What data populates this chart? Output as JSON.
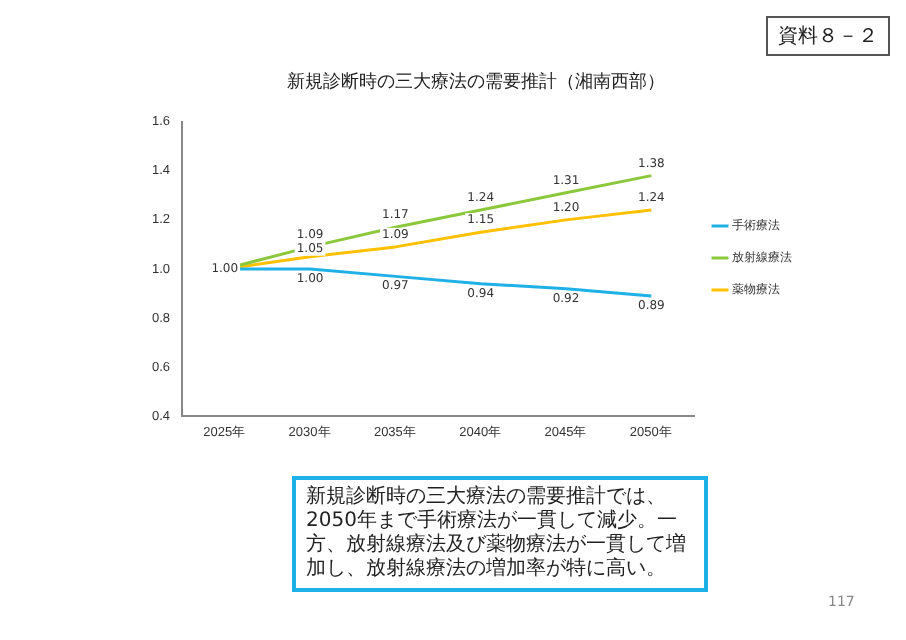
{
  "chart_data": {
    "type": "line",
    "title": "新規診断時の三大療法の需要推計（湘南西部）",
    "categories": [
      "2025年",
      "2030年",
      "2035年",
      "2040年",
      "2045年",
      "2050年"
    ],
    "series": [
      {
        "name": "手術療法",
        "color": "#1fb0e8",
        "values": [
          1.0,
          1.0,
          0.97,
          0.94,
          0.92,
          0.89
        ],
        "value_labels": [
          "1.00",
          "1.00",
          "0.97",
          "0.94",
          "0.92",
          "0.89"
        ]
      },
      {
        "name": "放射線療法",
        "color": "#8cc83c",
        "values": [
          1.0,
          1.09,
          1.17,
          1.24,
          1.31,
          1.38
        ],
        "value_labels": [
          null,
          "1.09",
          "1.17",
          "1.24",
          "1.31",
          "1.38"
        ]
      },
      {
        "name": "薬物療法",
        "color": "#ffc000",
        "values": [
          1.0,
          1.05,
          1.09,
          1.15,
          1.2,
          1.24
        ],
        "value_labels": [
          null,
          "1.05",
          "1.09",
          "1.15",
          "1.20",
          "1.24"
        ]
      }
    ],
    "ylim": [
      0.4,
      1.6
    ],
    "yticks": [
      0.4,
      0.6,
      0.8,
      {
        "value": 1.0,
        "label": "1.0"
      },
      1.2,
      1.4,
      1.6
    ],
    "grid": false,
    "legend": "right",
    "marker": "none",
    "line_style": "solid",
    "annotations": [
      "資料８－２",
      "新規診断時の三大療法の需要推計では、2050年まで手術療法が一貫して減少。一方、放射線療法及び薬物療法が一貫して増加し、放射線療法の増加率が特に高い。",
      "117"
    ]
  }
}
